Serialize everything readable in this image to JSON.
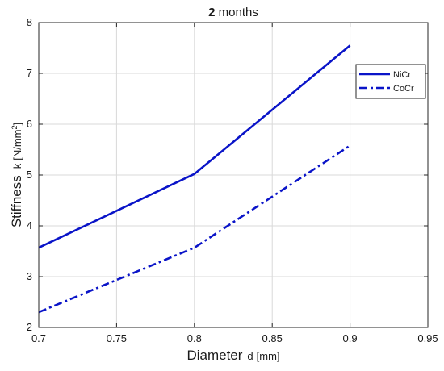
{
  "chart_data": {
    "type": "line",
    "title": {
      "prefix": "2",
      "suffix": " months"
    },
    "xlabel": {
      "main": "Diameter",
      "var": "d",
      "unit": "[mm]"
    },
    "ylabel": {
      "main": "Stiffness",
      "var": "k",
      "unit": "[N/mm",
      "unit_sup": "2",
      "unit_end": "]"
    },
    "xlim": [
      0.7,
      0.95
    ],
    "ylim": [
      2,
      8
    ],
    "xticks": [
      0.7,
      0.75,
      0.8,
      0.85,
      0.9,
      0.95
    ],
    "xtick_labels": [
      "0.7",
      "0.75",
      "0.8",
      "0.85",
      "0.9",
      "0.95"
    ],
    "yticks": [
      2,
      3,
      4,
      5,
      6,
      7,
      8
    ],
    "ytick_labels": [
      "2",
      "3",
      "4",
      "5",
      "6",
      "7",
      "8"
    ],
    "grid": true,
    "legend_position": "top-right",
    "x": [
      0.7,
      0.8,
      0.9
    ],
    "series": [
      {
        "name": "NiCr",
        "values": [
          3.57,
          5.02,
          7.55
        ],
        "color": "#0a14c8",
        "style": "solid"
      },
      {
        "name": "CoCr",
        "values": [
          2.3,
          3.57,
          5.58
        ],
        "color": "#0a14c8",
        "style": "dashdot"
      }
    ]
  }
}
